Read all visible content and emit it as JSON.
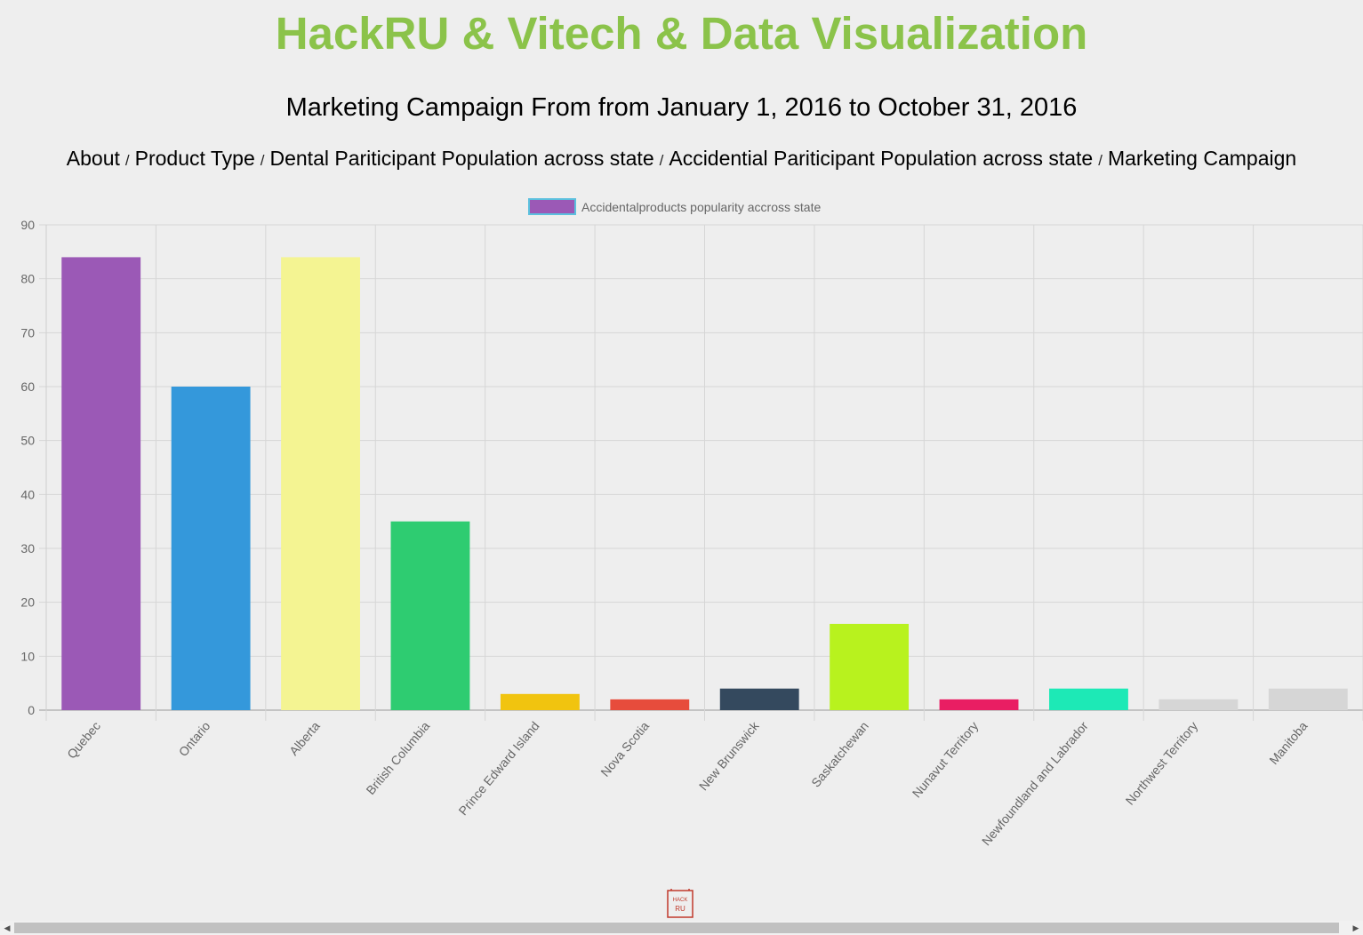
{
  "header": {
    "title": "HackRU & Vitech & Data Visualization",
    "subtitle": "Marketing Campaign From from January 1, 2016 to October 31, 2016"
  },
  "nav": {
    "items": [
      {
        "label": "About"
      },
      {
        "label": "Product Type"
      },
      {
        "label": "Dental Pariticipant Population across state"
      },
      {
        "label": "Accidential Pariticipant Population across state"
      },
      {
        "label": "Marketing Campaign"
      }
    ],
    "separator": "/"
  },
  "chart_data": {
    "type": "bar",
    "categories": [
      "Quebec",
      "Ontario",
      "Alberta",
      "British Columbia",
      "Prince Edward Island",
      "Nova Scotia",
      "New Brunswick",
      "Saskatchewan",
      "Nunavut Territory",
      "Newfoundland and Labrador",
      "Northwest Territory",
      "Manitoba"
    ],
    "series": [
      {
        "name": "Accidentalproducts popularity accross state",
        "values": [
          84,
          60,
          84,
          35,
          3,
          2,
          4,
          16,
          2,
          4,
          2,
          4
        ]
      }
    ],
    "colors": [
      "#9b59b6",
      "#3498db",
      "#f4f492",
      "#2ecc71",
      "#f1c40f",
      "#e74c3c",
      "#34495e",
      "#b8f21e",
      "#e91e63",
      "#1de9b6",
      "#d6d6d6",
      "#d6d6d6"
    ],
    "legend_color": "#9b59b6",
    "legend_border": "#5bc0de",
    "ylim": [
      0,
      90
    ],
    "yticks": [
      0,
      10,
      20,
      30,
      40,
      50,
      60,
      70,
      80,
      90
    ],
    "grid": true,
    "legend": "top-center"
  },
  "footer": {
    "logo_text_1": "HACK",
    "logo_text_2": "RU"
  },
  "colors": {
    "title": "#8bc34a",
    "background": "#eeeeee"
  }
}
